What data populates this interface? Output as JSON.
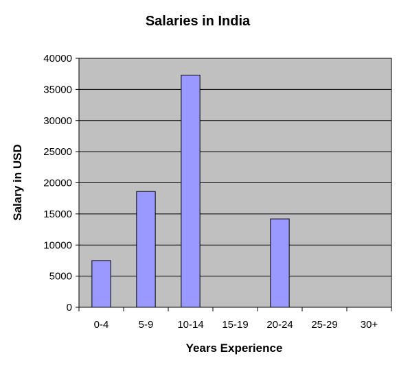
{
  "chart_data": {
    "type": "bar",
    "title": "Salaries in India",
    "xlabel": "Years Experience",
    "ylabel": "Salary in USD",
    "categories": [
      "0-4",
      "5-9",
      "10-14",
      "15-19",
      "20-24",
      "25-29",
      "30+"
    ],
    "values": [
      7500,
      18600,
      37300,
      0,
      14200,
      0,
      0
    ],
    "ylim": [
      0,
      40000
    ],
    "yticks": [
      "0",
      "5000",
      "10000",
      "15000",
      "20000",
      "25000",
      "30000",
      "35000",
      "40000"
    ],
    "grid": true,
    "legend": "none"
  },
  "colors": {
    "bar_fill": "#9999ff",
    "plot_background": "#c0c0c0",
    "gridline": "#000000"
  }
}
